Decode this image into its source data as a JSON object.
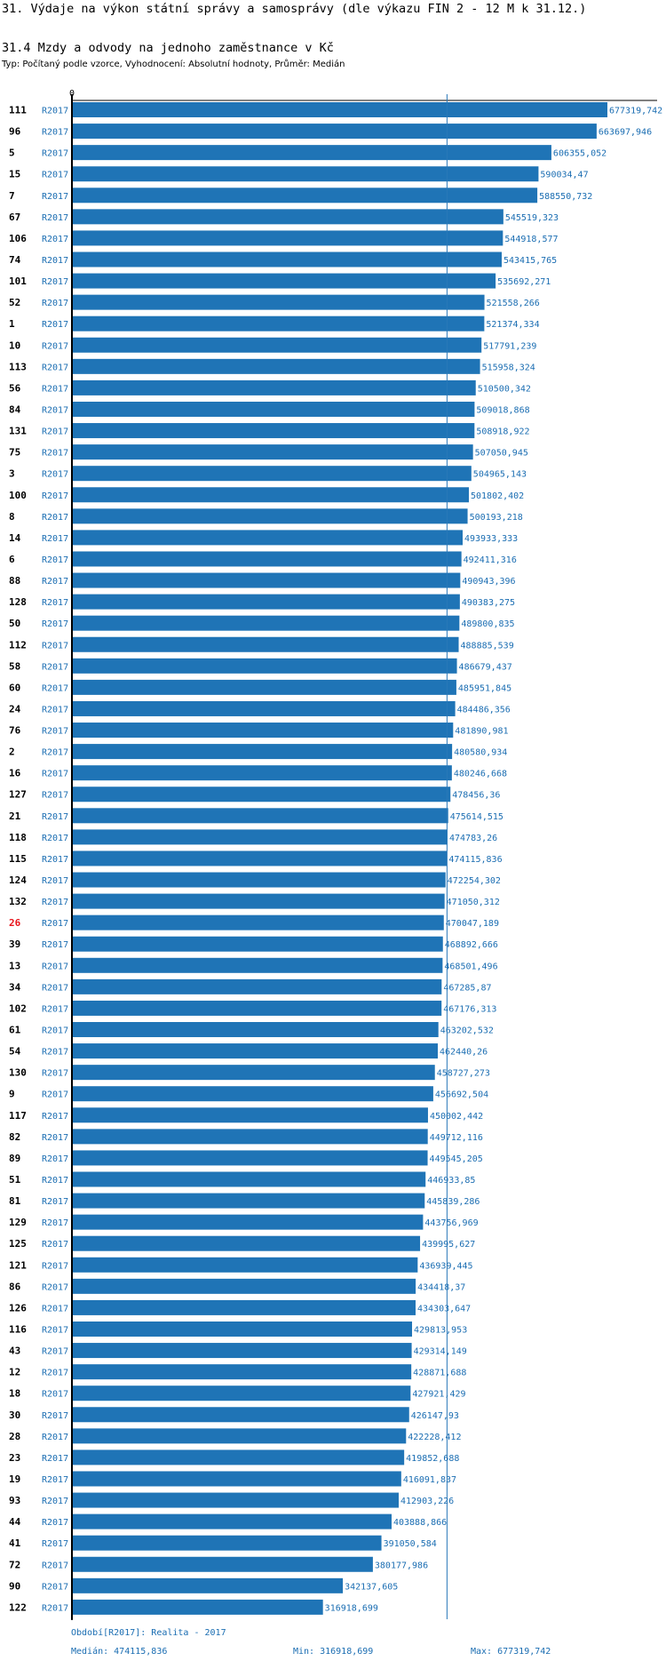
{
  "header": {
    "title": "31. Výdaje na výkon státní správy a samosprávy (dle výkazu FIN 2 - 12 M k 31.12.)",
    "subtitle": "31.4 Mzdy a odvody na jednoho zaměstnance v Kč",
    "type_line": "Typ: Počítaný podle vzorce, Vyhodnocení: Absolutní hodnoty, Průměr: Medián"
  },
  "footer": {
    "period": "Období[R2017]: Realita - 2017",
    "median": "Medián: 474115,836",
    "min": "Min: 316918,699",
    "max": "Max: 677319,742"
  },
  "colors": {
    "bar": "#1f74b6",
    "label_blue": "#1a6db2",
    "highlight": "#e8141b"
  },
  "chart_data": {
    "type": "bar",
    "orientation": "horizontal",
    "x_zero_label": "0",
    "series_label": "R2017",
    "median": 474115.836,
    "highlight_id": "26",
    "rows": [
      {
        "id": "111",
        "value": 677319.742,
        "label": "677319,742"
      },
      {
        "id": "96",
        "value": 663697.946,
        "label": "663697,946"
      },
      {
        "id": "5",
        "value": 606355.052,
        "label": "606355,052"
      },
      {
        "id": "15",
        "value": 590034.47,
        "label": "590034,47"
      },
      {
        "id": "7",
        "value": 588550.732,
        "label": "588550,732"
      },
      {
        "id": "67",
        "value": 545519.323,
        "label": "545519,323"
      },
      {
        "id": "106",
        "value": 544918.577,
        "label": "544918,577"
      },
      {
        "id": "74",
        "value": 543415.765,
        "label": "543415,765"
      },
      {
        "id": "101",
        "value": 535692.271,
        "label": "535692,271"
      },
      {
        "id": "52",
        "value": 521558.266,
        "label": "521558,266"
      },
      {
        "id": "1",
        "value": 521374.334,
        "label": "521374,334"
      },
      {
        "id": "10",
        "value": 517791.239,
        "label": "517791,239"
      },
      {
        "id": "113",
        "value": 515958.324,
        "label": "515958,324"
      },
      {
        "id": "56",
        "value": 510500.342,
        "label": "510500,342"
      },
      {
        "id": "84",
        "value": 509018.868,
        "label": "509018,868"
      },
      {
        "id": "131",
        "value": 508918.922,
        "label": "508918,922"
      },
      {
        "id": "75",
        "value": 507050.945,
        "label": "507050,945"
      },
      {
        "id": "3",
        "value": 504965.143,
        "label": "504965,143"
      },
      {
        "id": "100",
        "value": 501802.402,
        "label": "501802,402"
      },
      {
        "id": "8",
        "value": 500193.218,
        "label": "500193,218"
      },
      {
        "id": "14",
        "value": 493933.333,
        "label": "493933,333"
      },
      {
        "id": "6",
        "value": 492411.316,
        "label": "492411,316"
      },
      {
        "id": "88",
        "value": 490943.396,
        "label": "490943,396"
      },
      {
        "id": "128",
        "value": 490383.275,
        "label": "490383,275"
      },
      {
        "id": "50",
        "value": 489800.835,
        "label": "489800,835"
      },
      {
        "id": "112",
        "value": 488885.539,
        "label": "488885,539"
      },
      {
        "id": "58",
        "value": 486679.437,
        "label": "486679,437"
      },
      {
        "id": "60",
        "value": 485951.845,
        "label": "485951,845"
      },
      {
        "id": "24",
        "value": 484486.356,
        "label": "484486,356"
      },
      {
        "id": "76",
        "value": 481890.981,
        "label": "481890,981"
      },
      {
        "id": "2",
        "value": 480580.934,
        "label": "480580,934"
      },
      {
        "id": "16",
        "value": 480246.668,
        "label": "480246,668"
      },
      {
        "id": "127",
        "value": 478456.36,
        "label": "478456,36"
      },
      {
        "id": "21",
        "value": 475614.515,
        "label": "475614,515"
      },
      {
        "id": "118",
        "value": 474783.26,
        "label": "474783,26"
      },
      {
        "id": "115",
        "value": 474115.836,
        "label": "474115,836"
      },
      {
        "id": "124",
        "value": 472254.302,
        "label": "472254,302"
      },
      {
        "id": "132",
        "value": 471050.312,
        "label": "471050,312"
      },
      {
        "id": "26",
        "value": 470047.189,
        "label": "470047,189"
      },
      {
        "id": "39",
        "value": 468892.666,
        "label": "468892,666"
      },
      {
        "id": "13",
        "value": 468501.496,
        "label": "468501,496"
      },
      {
        "id": "34",
        "value": 467285.87,
        "label": "467285,87"
      },
      {
        "id": "102",
        "value": 467176.313,
        "label": "467176,313"
      },
      {
        "id": "61",
        "value": 463202.532,
        "label": "463202,532"
      },
      {
        "id": "54",
        "value": 462440.26,
        "label": "462440,26"
      },
      {
        "id": "130",
        "value": 458727.273,
        "label": "458727,273"
      },
      {
        "id": "9",
        "value": 456692.504,
        "label": "456692,504"
      },
      {
        "id": "117",
        "value": 450002.442,
        "label": "450002,442"
      },
      {
        "id": "82",
        "value": 449712.116,
        "label": "449712,116"
      },
      {
        "id": "89",
        "value": 449545.205,
        "label": "449545,205"
      },
      {
        "id": "51",
        "value": 446933.85,
        "label": "446933,85"
      },
      {
        "id": "81",
        "value": 445839.286,
        "label": "445839,286"
      },
      {
        "id": "129",
        "value": 443756.969,
        "label": "443756,969"
      },
      {
        "id": "125",
        "value": 439995.627,
        "label": "439995,627"
      },
      {
        "id": "121",
        "value": 436939.445,
        "label": "436939,445"
      },
      {
        "id": "86",
        "value": 434418.37,
        "label": "434418,37"
      },
      {
        "id": "126",
        "value": 434303.647,
        "label": "434303,647"
      },
      {
        "id": "116",
        "value": 429813.953,
        "label": "429813,953"
      },
      {
        "id": "43",
        "value": 429314.149,
        "label": "429314,149"
      },
      {
        "id": "12",
        "value": 428871.688,
        "label": "428871,688"
      },
      {
        "id": "18",
        "value": 427921.429,
        "label": "427921,429"
      },
      {
        "id": "30",
        "value": 426147.93,
        "label": "426147,93"
      },
      {
        "id": "28",
        "value": 422228.412,
        "label": "422228,412"
      },
      {
        "id": "23",
        "value": 419852.688,
        "label": "419852,688"
      },
      {
        "id": "19",
        "value": 416091.837,
        "label": "416091,837"
      },
      {
        "id": "93",
        "value": 412903.226,
        "label": "412903,226"
      },
      {
        "id": "44",
        "value": 403888.866,
        "label": "403888,866"
      },
      {
        "id": "41",
        "value": 391050.584,
        "label": "391050,584"
      },
      {
        "id": "72",
        "value": 380177.986,
        "label": "380177,986"
      },
      {
        "id": "90",
        "value": 342137.605,
        "label": "342137,605"
      },
      {
        "id": "122",
        "value": 316918.699,
        "label": "316918,699"
      }
    ]
  }
}
